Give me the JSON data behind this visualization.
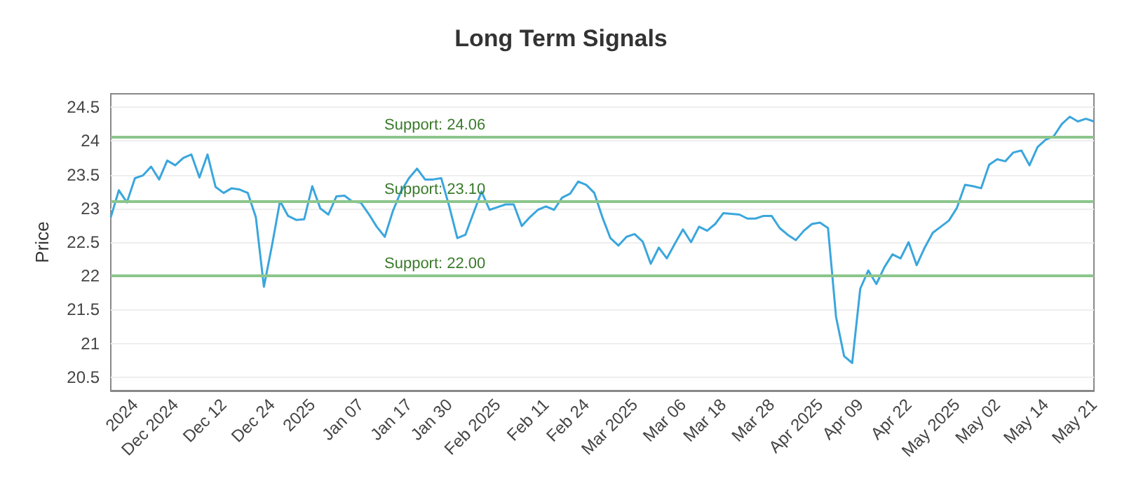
{
  "chart_data": {
    "type": "line",
    "title": "Long Term Signals",
    "ylabel": "Price",
    "categories": [
      null,
      null,
      null,
      "2024",
      null,
      null,
      null,
      null,
      "Dec 2024",
      null,
      null,
      null,
      null,
      null,
      "Dec 12",
      null,
      null,
      null,
      null,
      null,
      "Dec 24",
      null,
      null,
      null,
      null,
      "2025",
      null,
      null,
      null,
      null,
      null,
      "Jan 07",
      null,
      null,
      null,
      null,
      null,
      "Jan 17",
      null,
      null,
      null,
      null,
      "Jan 30",
      null,
      null,
      null,
      null,
      null,
      "Feb 2025",
      null,
      null,
      null,
      null,
      null,
      "Feb 11",
      null,
      null,
      null,
      null,
      "Feb 24",
      null,
      null,
      null,
      null,
      null,
      "Mar 2025",
      null,
      null,
      null,
      null,
      null,
      "Mar 06",
      null,
      null,
      null,
      null,
      "Mar 18",
      null,
      null,
      null,
      null,
      null,
      "Mar 28",
      null,
      null,
      null,
      null,
      null,
      "Apr 2025",
      null,
      null,
      null,
      null,
      "Apr 09",
      null,
      null,
      null,
      null,
      null,
      "Apr 22",
      null,
      null,
      null,
      null,
      null,
      "May 2025",
      null,
      null,
      null,
      null,
      "May 02",
      null,
      null,
      null,
      null,
      null,
      "May 14",
      null,
      null,
      null,
      null,
      null,
      "May 21"
    ],
    "series": [
      {
        "color": "#3aa6dd",
        "values": [
          22.87,
          23.27,
          23.09,
          23.45,
          23.49,
          23.62,
          23.43,
          23.71,
          23.64,
          23.75,
          23.8,
          23.46,
          23.8,
          23.32,
          23.23,
          23.3,
          23.28,
          23.23,
          22.87,
          21.84,
          22.45,
          23.11,
          22.89,
          22.83,
          22.84,
          23.33,
          23.0,
          22.91,
          23.18,
          23.19,
          23.1,
          23.09,
          22.92,
          22.73,
          22.58,
          22.96,
          23.25,
          23.45,
          23.59,
          23.43,
          23.43,
          23.45,
          23.03,
          22.56,
          22.61,
          22.93,
          23.25,
          22.98,
          23.02,
          23.06,
          23.06,
          22.74,
          22.87,
          22.98,
          23.03,
          22.98,
          23.16,
          23.22,
          23.4,
          23.35,
          23.23,
          22.87,
          22.56,
          22.45,
          22.58,
          22.62,
          22.51,
          22.18,
          22.42,
          22.26,
          22.48,
          22.69,
          22.5,
          22.73,
          22.67,
          22.77,
          22.93,
          22.92,
          22.91,
          22.85,
          22.85,
          22.89,
          22.89,
          22.71,
          22.61,
          22.53,
          22.67,
          22.77,
          22.79,
          22.71,
          21.39,
          20.81,
          20.71,
          21.81,
          22.08,
          21.88,
          22.13,
          22.32,
          22.26,
          22.5,
          22.16,
          22.42,
          22.64,
          22.73,
          22.82,
          23.01,
          23.35,
          23.33,
          23.3,
          23.65,
          23.73,
          23.7,
          23.83,
          23.86,
          23.64,
          23.91,
          24.02,
          24.07,
          24.25,
          24.36,
          24.29,
          24.33,
          24.29
        ]
      }
    ],
    "ylim": [
      20.3,
      24.7
    ],
    "yticks": [
      20.5,
      21,
      21.5,
      22,
      22.5,
      23,
      23.5,
      24,
      24.5
    ],
    "grid": "y",
    "marker": "none",
    "line_style": "solid",
    "ref_lines": [
      {
        "axis": "y",
        "value": 24.06,
        "label": "Support: 24.06",
        "color": "#8cc68c"
      },
      {
        "axis": "y",
        "value": 23.1,
        "label": "Support: 23.10",
        "color": "#8cc68c"
      },
      {
        "axis": "y",
        "value": 22.0,
        "label": "Support: 22.00",
        "color": "#8cc68c"
      }
    ]
  }
}
